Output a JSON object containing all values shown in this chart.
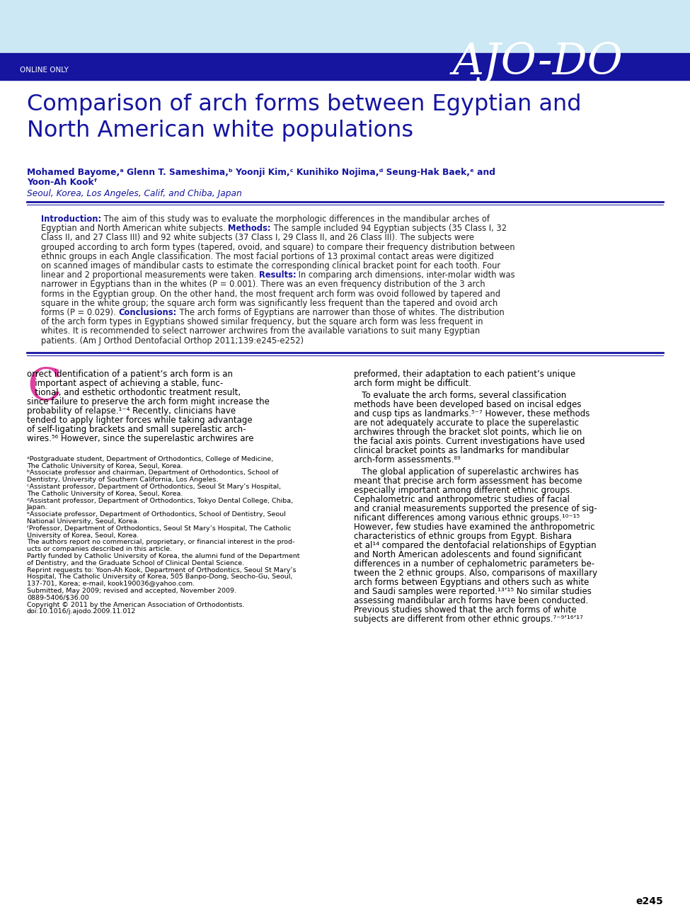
{
  "header_bg_light": "#cce8f4",
  "header_bg_dark": "#1515a0",
  "header_text": "ONLINE ONLY",
  "header_logo": "AJO-DO",
  "title": "Comparison of arch forms between Egyptian and\nNorth American white populations",
  "title_color": "#1515a0",
  "authors_line1": "Mohamed Bayome,ᵃ Glenn T. Sameshima,ᵇ Yoonji Kim,ᶜ Kunihiko Nojima,ᵈ Seung-Hak Baek,ᵉ and",
  "authors_line2": "Yoon-Ah Kookᶠ",
  "authors_color": "#1515a0",
  "affiliation": "Seoul, Korea, Los Angeles, Calif, and Chiba, Japan",
  "affiliation_color": "#1515a0",
  "divider_color": "#1515a0",
  "drop_cap_color": "#e040a0",
  "page_number": "e245",
  "abstract_intro_label": "Introduction:",
  "abstract_intro_text": " The aim of this study was to evaluate the morphologic differences in the mandibular arches of Egyptian and North American white subjects. ",
  "abstract_methods_label": "Methods:",
  "abstract_methods_text": " The sample included 94 Egyptian subjects (35 Class I, 32 Class II, and 27 Class III) and 92 white subjects (37 Class I, 29 Class II, and 26 Class III). The subjects were grouped according to arch form types (tapered, ovoid, and square) to compare their frequency distribution between ethnic groups in each Angle classification. The most facial portions of 13 proximal contact areas were digitized on scanned images of mandibular casts to estimate the corresponding clinical bracket point for each tooth. Four linear and 2 proportional measurements were taken. ",
  "abstract_results_label": "Results:",
  "abstract_results_text": " In comparing arch dimensions, inter-molar width was narrower in Egyptians than in the whites (P = 0.001). There was an even frequency distribution of the 3 arch forms in the Egyptian group. On the other hand, the most frequent arch form was ovoid followed by tapered and square in the white group; the square arch form was significantly less frequent than the tapered and ovoid arch forms (P = 0.029). ",
  "abstract_conclusions_label": "Conclusions:",
  "abstract_conclusions_text": " The arch forms of Egyptians are narrower than those of whites. The distribution of the arch form types in Egyptians showed similar frequency, but the square arch form was less frequent in whites. It is recommended to select narrower archwires from the available variations to suit many Egyptian patients. (Am J Orthod Dentofacial Orthop 2011;139:e245-e252)",
  "body_left_lines": [
    "orrect identification of a patient’s arch form is an",
    "   important aspect of achieving a stable, func-",
    "   tional, and esthetic orthodontic treatment result,",
    "since failure to preserve the arch form might increase the",
    "probability of relapse.¹⁻⁴ Recently, clinicians have",
    "tended to apply lighter forces while taking advantage",
    "of self-ligating brackets and small superelastic arch-",
    "wires.⁵⁶ However, since the superelastic archwires are"
  ],
  "body_right_para1": [
    "preformed, their adaptation to each patient’s unique",
    "arch form might be difficult."
  ],
  "body_right_para2": [
    "   To evaluate the arch forms, several classification",
    "methods have been developed based on incisal edges",
    "and cusp tips as landmarks.⁵⁻⁷ However, these methods",
    "are not adequately accurate to place the superelastic",
    "archwires through the bracket slot points, which lie on",
    "the facial axis points. Current investigations have used",
    "clinical bracket points as landmarks for mandibular",
    "arch-form assessments.⁸⁹"
  ],
  "body_right_para3": [
    "   The global application of superelastic archwires has",
    "meant that precise arch form assessment has become",
    "especially important among different ethnic groups.",
    "Cephalometric and anthropometric studies of facial",
    "and cranial measurements supported the presence of sig-",
    "nificant differences among various ethnic groups.¹⁰⁻¹⁵",
    "However, few studies have examined the anthropometric",
    "characteristics of ethnic groups from Egypt. Bishara",
    "et al¹⁴ compared the dentofacial relationships of Egyptian",
    "and North American adolescents and found significant",
    "differences in a number of cephalometric parameters be-",
    "tween the 2 ethnic groups. Also, comparisons of maxillary",
    "arch forms between Egyptians and others such as white",
    "and Saudi samples were reported.¹³’¹⁵ No similar studies",
    "assessing mandibular arch forms have been conducted.",
    "Previous studies showed that the arch forms of white",
    "subjects are different from other ethnic groups.⁷⁻⁹’¹⁶’¹⁷"
  ],
  "footnotes": [
    "ᵃPostgraduate student, Department of Orthodontics, College of Medicine,",
    "The Catholic University of Korea, Seoul, Korea.",
    "ᵇAssociate professor and chairman, Department of Orthodontics, School of",
    "Dentistry, University of Southern California, Los Angeles.",
    "ᶜAssistant professor, Department of Orthodontics, Seoul St Mary’s Hospital,",
    "The Catholic University of Korea, Seoul, Korea.",
    "ᵈAssistant professor, Department of Orthodontics, Tokyo Dental College, Chiba,",
    "Japan.",
    "ᵉAssociate professor, Department of Orthodontics, School of Dentistry, Seoul",
    "National University, Seoul, Korea.",
    "ᶠProfessor, Department of Orthodontics, Seoul St Mary’s Hospital, The Catholic",
    "University of Korea, Seoul, Korea.",
    "The authors report no commercial, proprietary, or financial interest in the prod-",
    "ucts or companies described in this article.",
    "Partly funded by Catholic University of Korea, the alumni fund of the Department",
    "of Dentistry, and the Graduate School of Clinical Dental Science.",
    "Reprint requests to: Yoon-Ah Kook, Department of Orthodontics, Seoul St Mary’s",
    "Hospital, The Catholic University of Korea, 505 Banpo-Dong, Seocho-Gu, Seoul,",
    "137-701, Korea; e-mail, kook190036@yahoo.com.",
    "Submitted, May 2009; revised and accepted, November 2009.",
    "0889-5406/$36.00",
    "Copyright © 2011 by the American Association of Orthodontists.",
    "doi:10.1016/j.ajodo.2009.11.012"
  ]
}
